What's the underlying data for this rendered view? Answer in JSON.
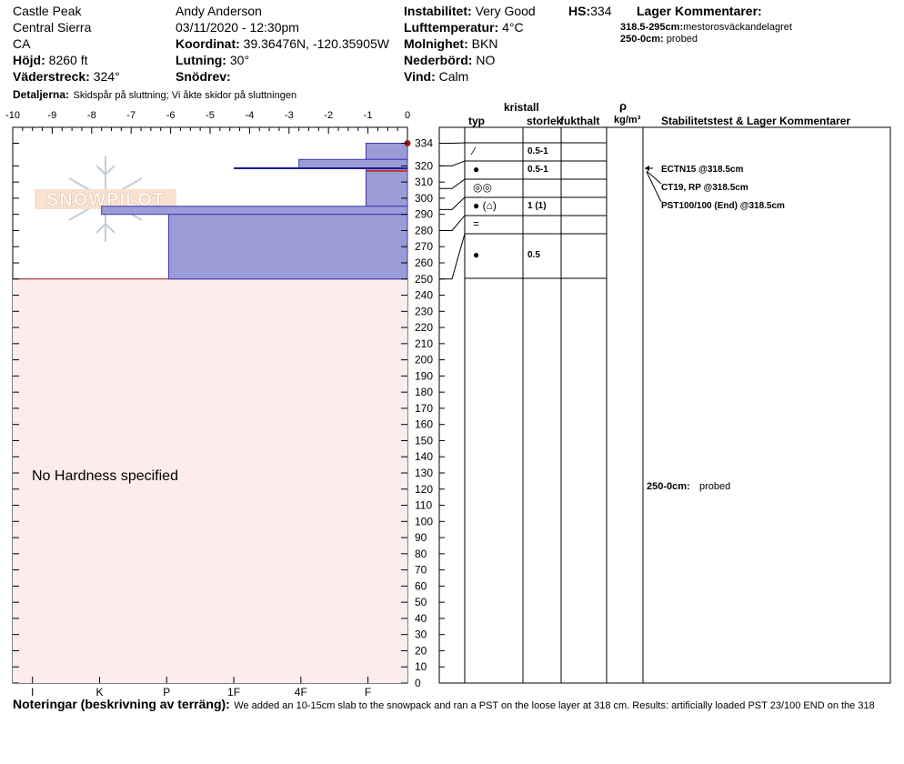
{
  "header": {
    "location": "Castle Peak",
    "range": "Central Sierra",
    "state": "CA",
    "elevation_label": "Höjd:",
    "elevation": "8260 ft",
    "aspect_label": "Väderstreck:",
    "aspect": "324°",
    "details_label": "Detaljerna:",
    "details": "Skidspår på sluttning;  Vi åkte skidor på sluttningen",
    "observer": "Andy Anderson",
    "datetime": "03/11/2020 - 12:30pm",
    "coord_label": "Koordinat:",
    "coord": "39.36476N, -120.35905W",
    "slope_label": "Lutning:",
    "slope": "30°",
    "drift_label": "Snödrev:",
    "drift": "",
    "instability_label": "Instabilitet:",
    "instability": "Very Good",
    "hs_label": "HS:",
    "hs": "334",
    "airtemp_label": "Lufttemperatur:",
    "airtemp": "4°C",
    "sky_label": "Molnighet:",
    "sky": "BKN",
    "precip_label": "Nederbörd:",
    "precip": "NO",
    "wind_label": "Vind:",
    "wind": "Calm",
    "layer_comments_title": "Lager Kommentarer:",
    "layer_comments": [
      {
        "range": "318.5-295cm:",
        "text": "mestorosväckandelagret"
      },
      {
        "range": "250-0cm:",
        "text": "probed"
      }
    ]
  },
  "logo": {
    "text": "SNOWPILOT"
  },
  "notes": {
    "label": "Noteringar (beskrivning av terräng):",
    "text": "We added an 10-15cm slab to the snowpack and ran a PST on the loose layer at 318 cm. Results: artificially loaded PST 23/100 END on the 318"
  },
  "columns": {
    "crystal_header": "kristall",
    "type": "typ",
    "size": "storlek",
    "moisture": "fukthalt",
    "rho": "ρ",
    "density_unit": "kg/m³",
    "stability_header": "Stabilitetstest & Lager Kommentarer"
  },
  "no_hardness": "No Hardness specified",
  "layer_rows": [
    {
      "symbol": "⁄",
      "size": "0.5-1"
    },
    {
      "symbol": "●",
      "size": "0.5-1"
    },
    {
      "symbol": "◎◎",
      "size": ""
    },
    {
      "symbol": "● (⌂)",
      "size": "1 (1)"
    },
    {
      "symbol": "=",
      "size": ""
    },
    {
      "symbol": "●",
      "size": "0.5"
    }
  ],
  "tests": [
    {
      "text": "ECTN15 @318.5cm"
    },
    {
      "text": "CT19, RP @318.5cm"
    },
    {
      "text": "PST100/100 (End) @318.5cm"
    }
  ],
  "probed_comment": {
    "range": "250-0cm:",
    "text": "probed"
  },
  "chart_data": {
    "type": "bar",
    "orientation": "horizontal",
    "x_ticks": [
      "-10",
      "-9",
      "-8",
      "-7",
      "-6",
      "-5",
      "-4",
      "-3",
      "-2",
      "-1",
      "0"
    ],
    "xlim": [
      -10,
      0
    ],
    "hardness_ticks": [
      "I",
      "K",
      "P",
      "1F",
      "4F",
      "F"
    ],
    "y_ticks": [
      0,
      10,
      20,
      30,
      40,
      50,
      60,
      70,
      80,
      90,
      100,
      110,
      120,
      130,
      140,
      150,
      160,
      170,
      180,
      190,
      200,
      210,
      220,
      230,
      240,
      250,
      260,
      270,
      280,
      290,
      300,
      310,
      320,
      334
    ],
    "ylim": [
      0,
      334
    ],
    "snow_height": 334,
    "probed_range": [
      0,
      250
    ],
    "layers": [
      {
        "top": 334,
        "bottom": 324,
        "hardness": -1.05
      },
      {
        "top": 324,
        "bottom": 318.5,
        "hardness": -2.75
      },
      {
        "top": 318.5,
        "bottom": 295,
        "hardness": -1.05
      },
      {
        "top": 295,
        "bottom": 290,
        "hardness": -7.75
      },
      {
        "top": 290,
        "bottom": 250,
        "hardness": -6.05
      }
    ],
    "layer_lines": [
      318.5,
      317.5
    ],
    "marker_height": 318.5,
    "temperature_points": [
      {
        "t": 0,
        "h": 334
      }
    ],
    "layer_boundaries": [
      334,
      320,
      306,
      293,
      280,
      250
    ]
  },
  "colors": {
    "layer_fill": "#9b9bd8",
    "layer_stroke": "#3b3bb0",
    "probed_fill": "#fdecec",
    "probed_stroke": "#8b1a1a",
    "red_line": "#c0392b",
    "blue_line": "#1b1b9a"
  }
}
